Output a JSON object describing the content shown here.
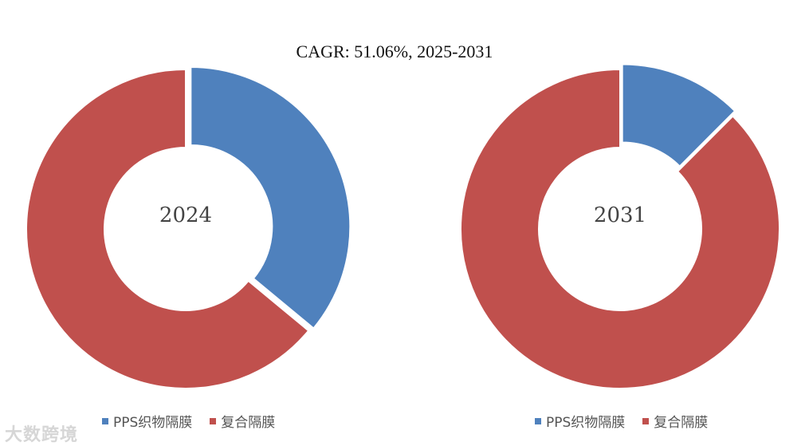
{
  "chart_data": [
    {
      "type": "pie",
      "subtype": "donut",
      "center_label": "2024",
      "categories": [
        "PPS织物隔膜",
        "复合隔膜"
      ],
      "values": [
        36,
        64
      ],
      "colors": [
        "#4F81BD",
        "#C0504D"
      ],
      "legend": "bottom"
    },
    {
      "type": "pie",
      "subtype": "donut",
      "center_label": "2031",
      "categories": [
        "PPS织物隔膜",
        "复合隔膜"
      ],
      "values": [
        12.5,
        87.5
      ],
      "colors": [
        "#4F81BD",
        "#C0504D"
      ],
      "legend": "bottom"
    }
  ],
  "title": "CAGR:   51.06%, 2025-2031",
  "watermark": "大数跨境"
}
